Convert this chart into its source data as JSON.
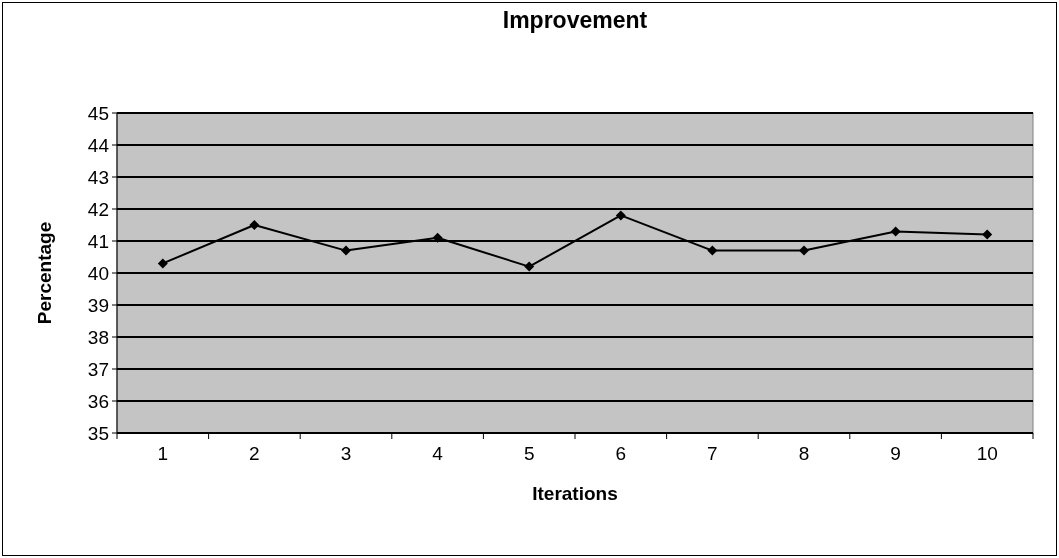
{
  "chart_data": {
    "type": "line",
    "title": "Improvement",
    "xlabel": "Iterations",
    "ylabel": "Percentage",
    "categories": [
      "1",
      "2",
      "3",
      "4",
      "5",
      "6",
      "7",
      "8",
      "9",
      "10"
    ],
    "series": [
      {
        "color": "#000000",
        "values": [
          40.3,
          41.5,
          40.7,
          41.1,
          40.2,
          41.8,
          40.7,
          40.7,
          41.3,
          41.2
        ]
      }
    ],
    "ylim": [
      35,
      45
    ],
    "yticks": [
      35,
      36,
      37,
      38,
      39,
      40,
      41,
      42,
      43,
      44,
      45
    ],
    "grid": "y",
    "marker": "diamond",
    "line_style": "solid"
  }
}
